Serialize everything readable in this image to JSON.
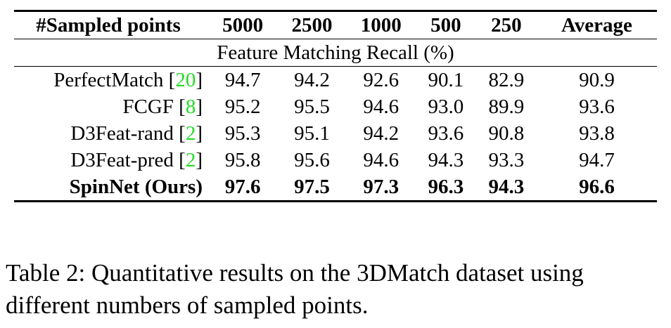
{
  "table": {
    "header": {
      "method": "#Sampled points",
      "columns": [
        "5000",
        "2500",
        "1000",
        "500",
        "250",
        "Average"
      ]
    },
    "subheader": "Feature Matching Recall (%)",
    "rows": [
      {
        "method": "PerfectMatch ",
        "ref_open": "[",
        "ref": "20",
        "ref_close": "]",
        "values": [
          "94.7",
          "94.2",
          "92.6",
          "90.1",
          "82.9",
          "90.9"
        ],
        "bold": false
      },
      {
        "method": "FCGF ",
        "ref_open": "[",
        "ref": "8",
        "ref_close": "]",
        "values": [
          "95.2",
          "95.5",
          "94.6",
          "93.0",
          "89.9",
          "93.6"
        ],
        "bold": false
      },
      {
        "method": "D3Feat-rand ",
        "ref_open": "[",
        "ref": "2",
        "ref_close": "]",
        "values": [
          "95.3",
          "95.1",
          "94.2",
          "93.6",
          "90.8",
          "93.8"
        ],
        "bold": false
      },
      {
        "method": "D3Feat-pred ",
        "ref_open": "[",
        "ref": "2",
        "ref_close": "]",
        "values": [
          "95.8",
          "95.6",
          "94.6",
          "94.3",
          "93.3",
          "94.7"
        ],
        "bold": false
      },
      {
        "method": "SpinNet (Ours)",
        "ref_open": "",
        "ref": "",
        "ref_close": "",
        "values": [
          "97.6",
          "97.5",
          "97.3",
          "96.3",
          "94.3",
          "96.6"
        ],
        "bold": true
      }
    ],
    "ref_color": "#22dd22"
  },
  "caption": {
    "text": "Table 2: Quantitative results on the 3DMatch dataset using different numbers of sampled points."
  }
}
